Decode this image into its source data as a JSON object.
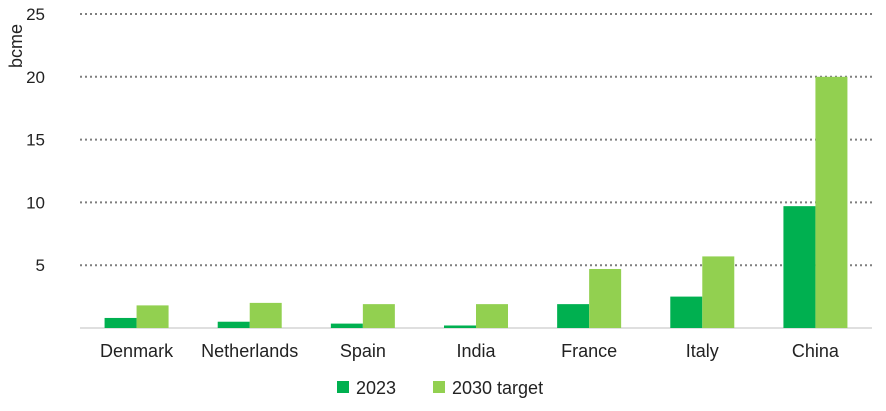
{
  "chart_data": {
    "type": "bar",
    "title": "",
    "xlabel": "",
    "ylabel": "bcme",
    "ylim": [
      0,
      25
    ],
    "yticks": [
      5,
      10,
      15,
      20,
      25
    ],
    "grid": true,
    "legend_position": "bottom",
    "categories": [
      "Denmark",
      "Netherlands",
      "Spain",
      "India",
      "France",
      "Italy",
      "China"
    ],
    "series": [
      {
        "name": "2023",
        "color": "#00b050",
        "values": [
          0.8,
          0.5,
          0.35,
          0.2,
          1.9,
          2.5,
          9.7
        ]
      },
      {
        "name": "2030 target",
        "color": "#92d050",
        "values": [
          1.8,
          2.0,
          1.9,
          1.9,
          4.7,
          5.7,
          20.0
        ]
      }
    ]
  }
}
